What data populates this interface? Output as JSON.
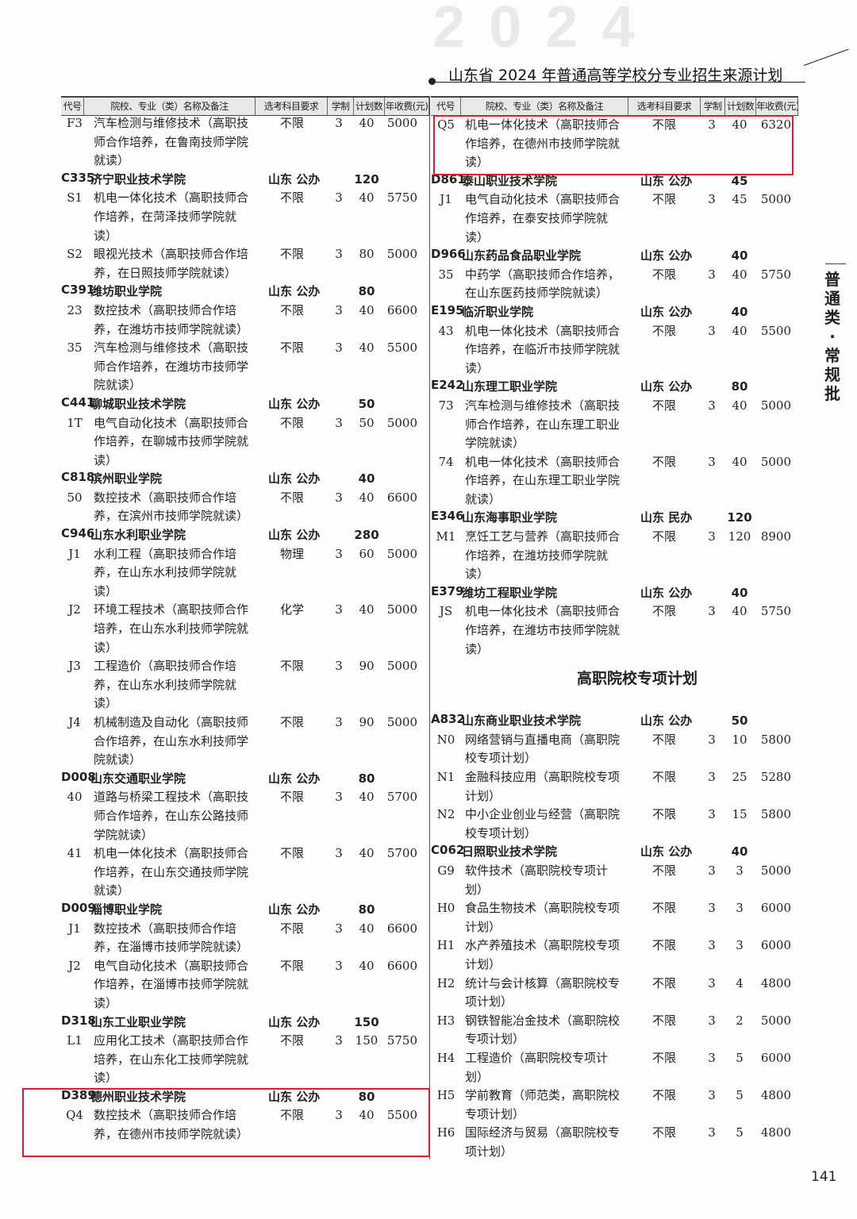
{
  "header": {
    "watermark": "2024",
    "title": "山东省 2024 年普通高等学校分专业招生来源计划"
  },
  "columns": [
    "代号",
    "院校、专业（类）名称及备注",
    "选考科目要求",
    "学制",
    "计划数",
    "年收费(元)"
  ],
  "side_label": "普通类·常规批",
  "page_number": "141",
  "accent": "#d3202b",
  "left": [
    {
      "type": "major",
      "code": "F3",
      "lines": [
        "汽车检测与维修技术（高职技",
        "师合作培养，在鲁南技师学院",
        "就读）"
      ],
      "subject": "不限",
      "years": "3",
      "plan": "40",
      "fee": "5000"
    },
    {
      "type": "school",
      "code": "C335",
      "name": "济宁职业技术学院",
      "region": "山东 公办",
      "plan": "120"
    },
    {
      "type": "major",
      "code": "S1",
      "lines": [
        "机电一体化技术（高职技师合",
        "作培养，在菏泽技师学院就",
        "读）"
      ],
      "subject": "不限",
      "years": "3",
      "plan": "40",
      "fee": "5750"
    },
    {
      "type": "major",
      "code": "S2",
      "lines": [
        "眼视光技术（高职技师合作培",
        "养，在日照技师学院就读）"
      ],
      "subject": "不限",
      "years": "3",
      "plan": "80",
      "fee": "5000"
    },
    {
      "type": "school",
      "code": "C391",
      "name": "潍坊职业学院",
      "region": "山东 公办",
      "plan": "80"
    },
    {
      "type": "major",
      "code": "23",
      "lines": [
        "数控技术（高职技师合作培",
        "养，在潍坊市技师学院就读）"
      ],
      "subject": "不限",
      "years": "3",
      "plan": "40",
      "fee": "6600"
    },
    {
      "type": "major",
      "code": "35",
      "lines": [
        "汽车检测与维修技术（高职技",
        "师合作培养，在潍坊市技师学",
        "院就读）"
      ],
      "subject": "不限",
      "years": "3",
      "plan": "40",
      "fee": "5500"
    },
    {
      "type": "school",
      "code": "C441",
      "name": "聊城职业技术学院",
      "region": "山东 公办",
      "plan": "50"
    },
    {
      "type": "major",
      "code": "1T",
      "lines": [
        "电气自动化技术（高职技师合",
        "作培养，在聊城市技师学院就",
        "读）"
      ],
      "subject": "不限",
      "years": "3",
      "plan": "50",
      "fee": "5000"
    },
    {
      "type": "school",
      "code": "C818",
      "name": "滨州职业学院",
      "region": "山东 公办",
      "plan": "40"
    },
    {
      "type": "major",
      "code": "50",
      "lines": [
        "数控技术（高职技师合作培",
        "养，在滨州市技师学院就读）"
      ],
      "subject": "不限",
      "years": "3",
      "plan": "40",
      "fee": "6600"
    },
    {
      "type": "school",
      "code": "C946",
      "name": "山东水利职业学院",
      "region": "山东 公办",
      "plan": "280"
    },
    {
      "type": "major",
      "code": "J1",
      "lines": [
        "水利工程（高职技师合作培",
        "养，在山东水利技师学院就",
        "读）"
      ],
      "subject": "物理",
      "years": "3",
      "plan": "60",
      "fee": "5000"
    },
    {
      "type": "major",
      "code": "J2",
      "lines": [
        "环境工程技术（高职技师合作",
        "培养，在山东水利技师学院就",
        "读）"
      ],
      "subject": "化学",
      "years": "3",
      "plan": "40",
      "fee": "5000"
    },
    {
      "type": "major",
      "code": "J3",
      "lines": [
        "工程造价（高职技师合作培",
        "养，在山东水利技师学院就",
        "读）"
      ],
      "subject": "不限",
      "years": "3",
      "plan": "90",
      "fee": "5000"
    },
    {
      "type": "major",
      "code": "J4",
      "lines": [
        "机械制造及自动化（高职技师",
        "合作培养，在山东水利技师学",
        "院就读）"
      ],
      "subject": "不限",
      "years": "3",
      "plan": "90",
      "fee": "5000"
    },
    {
      "type": "school",
      "code": "D008",
      "name": "山东交通职业学院",
      "region": "山东 公办",
      "plan": "80"
    },
    {
      "type": "major",
      "code": "40",
      "lines": [
        "道路与桥梁工程技术（高职技",
        "师合作培养，在山东公路技师",
        "学院就读）"
      ],
      "subject": "不限",
      "years": "3",
      "plan": "40",
      "fee": "5700"
    },
    {
      "type": "major",
      "code": "41",
      "lines": [
        "机电一体化技术（高职技师合",
        "作培养，在山东交通技师学院",
        "就读）"
      ],
      "subject": "不限",
      "years": "3",
      "plan": "40",
      "fee": "5700"
    },
    {
      "type": "school",
      "code": "D009",
      "name": "淄博职业学院",
      "region": "山东 公办",
      "plan": "80"
    },
    {
      "type": "major",
      "code": "J1",
      "lines": [
        "数控技术（高职技师合作培",
        "养，在淄博市技师学院就读）"
      ],
      "subject": "不限",
      "years": "3",
      "plan": "40",
      "fee": "6600"
    },
    {
      "type": "major",
      "code": "J2",
      "lines": [
        "电气自动化技术（高职技师合",
        "作培养，在淄博市技师学院就",
        "读）"
      ],
      "subject": "不限",
      "years": "3",
      "plan": "40",
      "fee": "6600"
    },
    {
      "type": "school",
      "code": "D318",
      "name": "山东工业职业学院",
      "region": "山东 公办",
      "plan": "150"
    },
    {
      "type": "major",
      "code": "L1",
      "lines": [
        "应用化工技术（高职技师合作",
        "培养，在山东化工技师学院就",
        "读）"
      ],
      "subject": "不限",
      "years": "3",
      "plan": "150",
      "fee": "5750"
    },
    {
      "type": "school",
      "code": "D389",
      "name": "德州职业技术学院",
      "region": "山东 公办",
      "plan": "80"
    },
    {
      "type": "major",
      "code": "Q4",
      "lines": [
        "数控技术（高职技师合作培",
        "养，在德州市技师学院就读）"
      ],
      "subject": "不限",
      "years": "3",
      "plan": "40",
      "fee": "5500"
    }
  ],
  "right": [
    {
      "type": "major",
      "code": "Q5",
      "lines": [
        "机电一体化技术（高职技师合",
        "作培养，在德州市技师学院就",
        "读）"
      ],
      "subject": "不限",
      "years": "3",
      "plan": "40",
      "fee": "6320"
    },
    {
      "type": "school",
      "code": "D861",
      "name": "泰山职业技术学院",
      "region": "山东 公办",
      "plan": "45"
    },
    {
      "type": "major",
      "code": "J1",
      "lines": [
        "电气自动化技术（高职技师合",
        "作培养，在泰安技师学院就",
        "读）"
      ],
      "subject": "不限",
      "years": "3",
      "plan": "45",
      "fee": "5000"
    },
    {
      "type": "school",
      "code": "D966",
      "name": "山东药品食品职业学院",
      "region": "山东 公办",
      "plan": "40"
    },
    {
      "type": "major",
      "code": "35",
      "lines": [
        "中药学（高职技师合作培养，",
        "在山东医药技师学院就读）"
      ],
      "subject": "不限",
      "years": "3",
      "plan": "40",
      "fee": "5750"
    },
    {
      "type": "school",
      "code": "E195",
      "name": "临沂职业学院",
      "region": "山东 公办",
      "plan": "40"
    },
    {
      "type": "major",
      "code": "43",
      "lines": [
        "机电一体化技术（高职技师合",
        "作培养，在临沂市技师学院就",
        "读）"
      ],
      "subject": "不限",
      "years": "3",
      "plan": "40",
      "fee": "5500"
    },
    {
      "type": "school",
      "code": "E242",
      "name": "山东理工职业学院",
      "region": "山东 公办",
      "plan": "80"
    },
    {
      "type": "major",
      "code": "73",
      "lines": [
        "汽车检测与维修技术（高职技",
        "师合作培养，在山东理工职业",
        "学院就读）"
      ],
      "subject": "不限",
      "years": "3",
      "plan": "40",
      "fee": "5000"
    },
    {
      "type": "major",
      "code": "74",
      "lines": [
        "机电一体化技术（高职技师合",
        "作培养，在山东理工职业学院",
        "就读）"
      ],
      "subject": "不限",
      "years": "3",
      "plan": "40",
      "fee": "5000"
    },
    {
      "type": "school",
      "code": "E346",
      "name": "山东海事职业学院",
      "region": "山东 民办",
      "plan": "120"
    },
    {
      "type": "major",
      "code": "M1",
      "lines": [
        "烹饪工艺与营养（高职技师合",
        "作培养，在潍坊技师学院就",
        "读）"
      ],
      "subject": "不限",
      "years": "3",
      "plan": "120",
      "fee": "8900"
    },
    {
      "type": "school",
      "code": "E379",
      "name": "潍坊工程职业学院",
      "region": "山东 公办",
      "plan": "40"
    },
    {
      "type": "major",
      "code": "JS",
      "lines": [
        "机电一体化技术（高职技师合",
        "作培养，在潍坊市技师学院就",
        "读）"
      ],
      "subject": "不限",
      "years": "3",
      "plan": "40",
      "fee": "5750"
    },
    {
      "type": "section",
      "title": "高职院校专项计划"
    },
    {
      "type": "school",
      "code": "A832",
      "name": "山东商业职业技术学院",
      "region": "山东 公办",
      "plan": "50"
    },
    {
      "type": "major",
      "code": "N0",
      "lines": [
        "网络营销与直播电商（高职院",
        "校专项计划）"
      ],
      "subject": "不限",
      "years": "3",
      "plan": "10",
      "fee": "5800"
    },
    {
      "type": "major",
      "code": "N1",
      "lines": [
        "金融科技应用（高职院校专项",
        "计划）"
      ],
      "subject": "不限",
      "years": "3",
      "plan": "25",
      "fee": "5280"
    },
    {
      "type": "major",
      "code": "N2",
      "lines": [
        "中小企业创业与经营（高职院",
        "校专项计划）"
      ],
      "subject": "不限",
      "years": "3",
      "plan": "15",
      "fee": "5800"
    },
    {
      "type": "school",
      "code": "C062",
      "name": "日照职业技术学院",
      "region": "山东 公办",
      "plan": "40"
    },
    {
      "type": "major",
      "code": "G9",
      "lines": [
        "软件技术（高职院校专项计",
        "划）"
      ],
      "subject": "不限",
      "years": "3",
      "plan": "3",
      "fee": "5000"
    },
    {
      "type": "major",
      "code": "H0",
      "lines": [
        "食品生物技术（高职院校专项",
        "计划）"
      ],
      "subject": "不限",
      "years": "3",
      "plan": "3",
      "fee": "6000"
    },
    {
      "type": "major",
      "code": "H1",
      "lines": [
        "水产养殖技术（高职院校专项",
        "计划）"
      ],
      "subject": "不限",
      "years": "3",
      "plan": "3",
      "fee": "6000"
    },
    {
      "type": "major",
      "code": "H2",
      "lines": [
        "统计与会计核算（高职院校专",
        "项计划）"
      ],
      "subject": "不限",
      "years": "3",
      "plan": "4",
      "fee": "4800"
    },
    {
      "type": "major",
      "code": "H3",
      "lines": [
        "钢铁智能冶金技术（高职院校",
        "专项计划）"
      ],
      "subject": "不限",
      "years": "3",
      "plan": "2",
      "fee": "5000"
    },
    {
      "type": "major",
      "code": "H4",
      "lines": [
        "工程造价（高职院校专项计",
        "划）"
      ],
      "subject": "不限",
      "years": "3",
      "plan": "5",
      "fee": "6000"
    },
    {
      "type": "major",
      "code": "H5",
      "lines": [
        "学前教育（师范类，高职院校",
        "专项计划）"
      ],
      "subject": "不限",
      "years": "3",
      "plan": "5",
      "fee": "4800"
    },
    {
      "type": "major",
      "code": "H6",
      "lines": [
        "国际经济与贸易（高职院校专",
        "项计划）"
      ],
      "subject": "不限",
      "years": "3",
      "plan": "5",
      "fee": "4800"
    }
  ]
}
